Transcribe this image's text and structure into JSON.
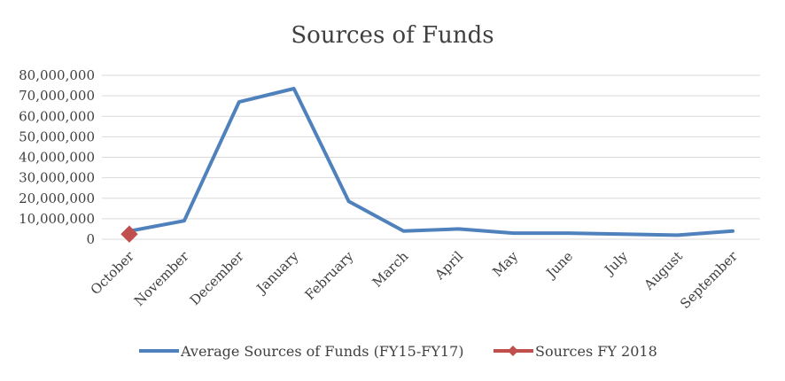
{
  "chart_data": {
    "type": "line",
    "title": "Sources of Funds",
    "xlabel": "",
    "ylabel": "",
    "categories": [
      "October",
      "November",
      "December",
      "January",
      "February",
      "March",
      "April",
      "May",
      "June",
      "July",
      "August",
      "September"
    ],
    "ylim": [
      0,
      80000000
    ],
    "yticks": [
      0,
      10000000,
      20000000,
      30000000,
      40000000,
      50000000,
      60000000,
      70000000,
      80000000
    ],
    "ytick_labels": [
      "0",
      "10,000,000",
      "20,000,000",
      "30,000,000",
      "40,000,000",
      "50,000,000",
      "60,000,000",
      "70,000,000",
      "80,000,000"
    ],
    "grid": true,
    "legend": "bottom",
    "series": [
      {
        "name": "Average Sources of Funds (FY15-FY17)",
        "color": "#4f81bd",
        "marker": "none",
        "values": [
          4000000,
          9000000,
          67000000,
          73500000,
          18500000,
          4000000,
          5000000,
          3000000,
          3000000,
          2500000,
          2000000,
          4000000
        ]
      },
      {
        "name": "Sources FY 2018",
        "color": "#c0504d",
        "marker": "diamond",
        "values": [
          2500000,
          null,
          null,
          null,
          null,
          null,
          null,
          null,
          null,
          null,
          null,
          null
        ]
      }
    ]
  }
}
